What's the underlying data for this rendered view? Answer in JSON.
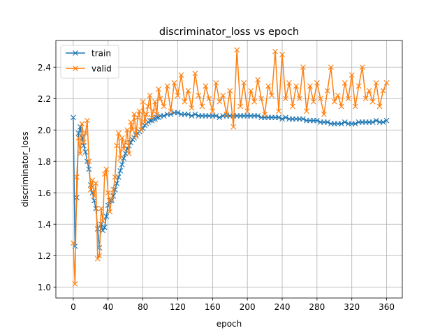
{
  "chart_data": {
    "type": "line",
    "title": "discriminator_loss vs epoch",
    "xlabel": "epoch",
    "ylabel": "discriminator_loss",
    "xlim": [
      -20,
      378
    ],
    "ylim": [
      0.93,
      2.57
    ],
    "xticks": [
      0,
      40,
      80,
      120,
      160,
      200,
      240,
      280,
      320,
      360
    ],
    "yticks": [
      1.0,
      1.2,
      1.4,
      1.6,
      1.8,
      2.0,
      2.2,
      2.4
    ],
    "grid": true,
    "legend_position": "top-left",
    "marker": "x",
    "series": [
      {
        "name": "train",
        "color": "#1f77b4",
        "x": [
          0,
          2,
          4,
          6,
          8,
          10,
          12,
          14,
          16,
          18,
          20,
          22,
          24,
          26,
          28,
          30,
          32,
          34,
          36,
          38,
          40,
          42,
          44,
          46,
          48,
          50,
          52,
          54,
          56,
          58,
          60,
          62,
          64,
          66,
          68,
          70,
          72,
          74,
          76,
          78,
          80,
          82,
          84,
          86,
          88,
          90,
          92,
          94,
          96,
          98,
          100,
          104,
          108,
          112,
          116,
          120,
          124,
          128,
          132,
          136,
          140,
          144,
          148,
          152,
          156,
          160,
          164,
          168,
          172,
          176,
          180,
          184,
          188,
          192,
          196,
          200,
          204,
          208,
          212,
          216,
          220,
          224,
          228,
          232,
          236,
          240,
          244,
          248,
          252,
          256,
          260,
          264,
          268,
          272,
          276,
          280,
          284,
          288,
          292,
          296,
          300,
          304,
          308,
          312,
          316,
          320,
          324,
          328,
          332,
          336,
          340,
          344,
          348,
          352,
          356,
          360
        ],
        "values": [
          2.08,
          1.26,
          1.57,
          1.98,
          2.02,
          1.95,
          1.9,
          1.86,
          1.8,
          1.75,
          1.65,
          1.6,
          1.55,
          1.5,
          1.37,
          1.25,
          1.4,
          1.36,
          1.38,
          1.45,
          1.52,
          1.55,
          1.55,
          1.58,
          1.62,
          1.66,
          1.7,
          1.74,
          1.78,
          1.82,
          1.85,
          1.88,
          1.9,
          1.92,
          1.94,
          1.95,
          1.97,
          1.98,
          1.99,
          2.0,
          2.01,
          2.03,
          2.04,
          2.05,
          2.06,
          2.06,
          2.07,
          2.07,
          2.08,
          2.08,
          2.09,
          2.09,
          2.1,
          2.1,
          2.11,
          2.11,
          2.1,
          2.1,
          2.1,
          2.09,
          2.1,
          2.09,
          2.09,
          2.09,
          2.09,
          2.09,
          2.09,
          2.08,
          2.09,
          2.09,
          2.09,
          2.09,
          2.09,
          2.09,
          2.09,
          2.09,
          2.09,
          2.09,
          2.09,
          2.08,
          2.08,
          2.08,
          2.08,
          2.08,
          2.08,
          2.07,
          2.08,
          2.07,
          2.07,
          2.07,
          2.07,
          2.07,
          2.06,
          2.06,
          2.06,
          2.06,
          2.05,
          2.05,
          2.05,
          2.04,
          2.04,
          2.04,
          2.04,
          2.05,
          2.04,
          2.04,
          2.04,
          2.05,
          2.05,
          2.05,
          2.05,
          2.05,
          2.06,
          2.05,
          2.05,
          2.06
        ]
      },
      {
        "name": "valid",
        "color": "#ff7f0e",
        "x": [
          0,
          2,
          4,
          6,
          8,
          10,
          12,
          14,
          16,
          18,
          20,
          22,
          24,
          26,
          28,
          30,
          32,
          34,
          36,
          38,
          40,
          42,
          44,
          46,
          48,
          50,
          52,
          54,
          56,
          58,
          60,
          62,
          64,
          66,
          68,
          70,
          72,
          74,
          76,
          78,
          80,
          82,
          84,
          86,
          88,
          90,
          92,
          94,
          96,
          98,
          100,
          104,
          108,
          112,
          116,
          120,
          124,
          128,
          132,
          136,
          140,
          144,
          148,
          152,
          156,
          160,
          164,
          168,
          172,
          176,
          180,
          184,
          188,
          192,
          196,
          200,
          204,
          208,
          212,
          216,
          220,
          224,
          228,
          232,
          236,
          240,
          244,
          248,
          252,
          256,
          260,
          264,
          268,
          272,
          276,
          280,
          284,
          288,
          292,
          296,
          300,
          304,
          308,
          312,
          316,
          320,
          324,
          328,
          332,
          336,
          340,
          344,
          348,
          352,
          356,
          360
        ],
        "values": [
          1.28,
          1.02,
          1.7,
          1.95,
          1.85,
          2.04,
          1.92,
          1.98,
          2.06,
          1.8,
          1.62,
          1.68,
          1.58,
          1.66,
          1.18,
          1.2,
          1.5,
          1.42,
          1.72,
          1.75,
          1.6,
          1.48,
          1.56,
          1.62,
          1.7,
          1.9,
          1.98,
          1.82,
          1.95,
          1.88,
          1.92,
          2.0,
          1.85,
          2.05,
          2.0,
          2.1,
          1.96,
          2.08,
          2.12,
          2.0,
          2.18,
          2.05,
          2.1,
          2.15,
          2.22,
          2.08,
          2.12,
          2.18,
          2.1,
          2.26,
          2.2,
          2.15,
          2.28,
          2.12,
          2.3,
          2.22,
          2.35,
          2.18,
          2.25,
          2.14,
          2.36,
          2.22,
          2.15,
          2.28,
          2.2,
          2.12,
          2.3,
          2.18,
          2.22,
          2.1,
          2.25,
          2.02,
          2.51,
          2.15,
          2.3,
          2.12,
          2.25,
          2.18,
          2.32,
          2.2,
          2.1,
          2.28,
          2.22,
          2.5,
          2.12,
          2.48,
          2.2,
          2.3,
          2.15,
          2.28,
          2.2,
          2.4,
          2.12,
          2.28,
          2.18,
          2.3,
          2.2,
          2.1,
          2.25,
          2.4,
          2.18,
          2.22,
          2.15,
          2.3,
          2.2,
          2.35,
          2.15,
          2.28,
          2.4,
          2.2,
          2.25,
          2.18,
          2.3,
          2.15,
          2.25,
          2.3
        ]
      }
    ]
  }
}
